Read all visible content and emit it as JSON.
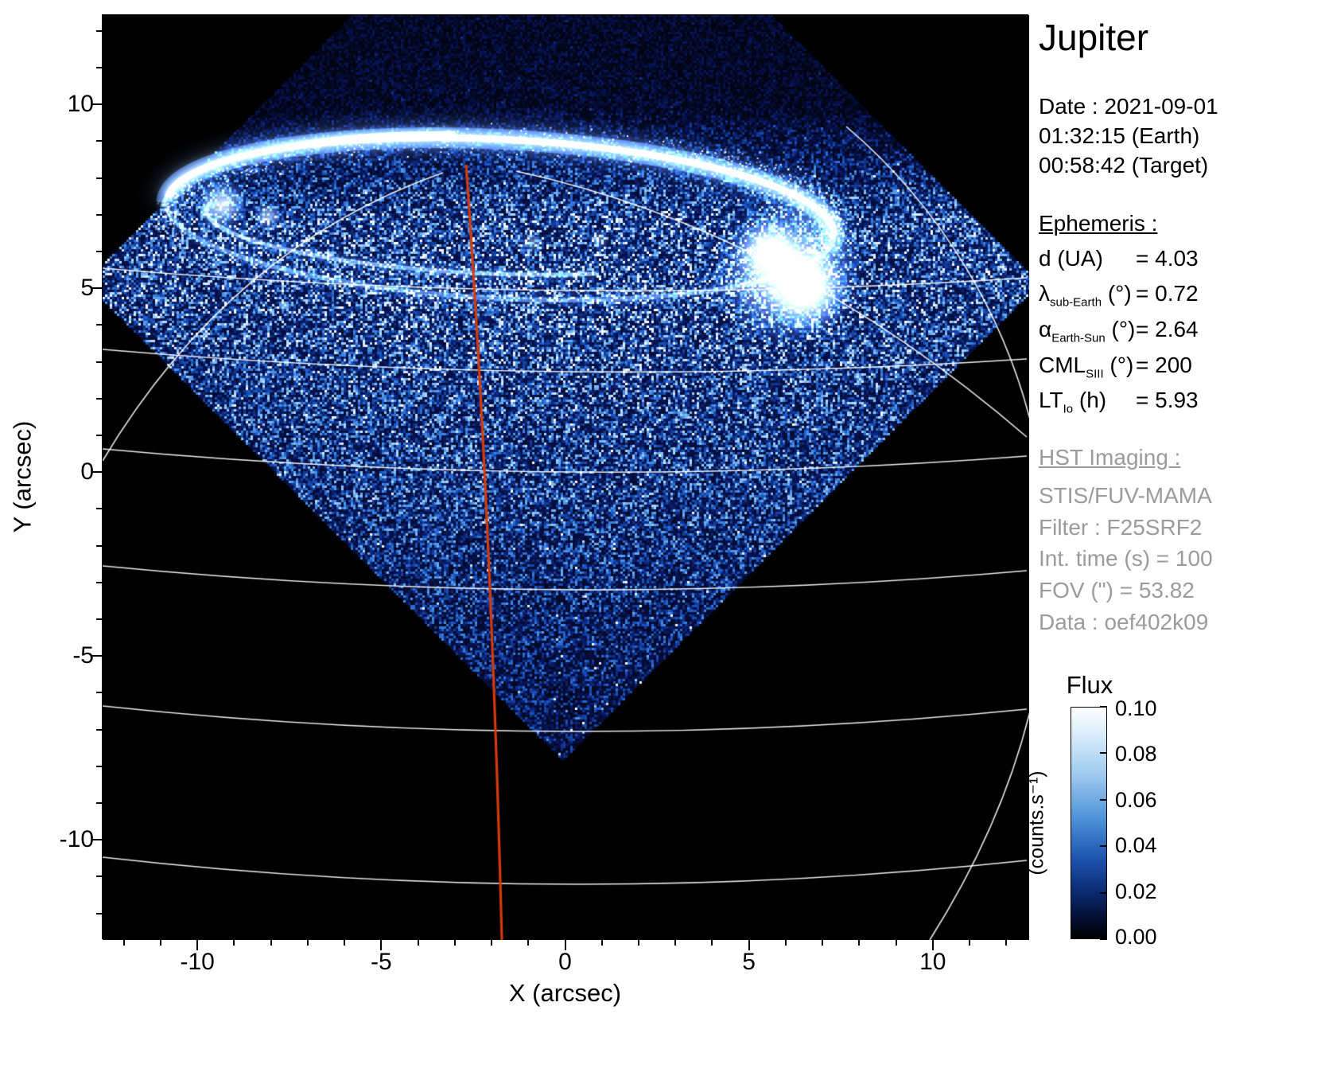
{
  "header": {
    "title": "Jupiter"
  },
  "observation": {
    "date_lines": [
      "Date : 2021-09-01",
      "01:32:15 (Earth)",
      "00:58:42 (Target)"
    ]
  },
  "ephemeris": {
    "heading": "Ephemeris :",
    "items": [
      {
        "sym": "d",
        "sub": "",
        "unit": " (UA)",
        "val": "= 4.03"
      },
      {
        "sym": "λ",
        "sub": "sub-Earth",
        "unit": " (°)",
        "val": "= 0.72"
      },
      {
        "sym": "α",
        "sub": "Earth-Sun",
        "unit": " (°)",
        "val": "= 2.64"
      },
      {
        "sym": "CML",
        "sub": "SIII",
        "unit": " (°)",
        "val": "= 200"
      },
      {
        "sym": "LT",
        "sub": "Io",
        "unit": " (h)",
        "val": "= 5.93"
      }
    ]
  },
  "hst": {
    "heading": "HST Imaging :",
    "lines": [
      "STIS/FUV-MAMA",
      "Filter : F25SRF2",
      "Int. time (s) = 100",
      "FOV (\") = 53.82",
      "Data : oef402k09"
    ]
  },
  "chart_data": {
    "type": "heatmap",
    "title": "Jupiter",
    "xlabel": "X (arcsec)",
    "ylabel": "Y (arcsec)",
    "xlim": [
      -12.6,
      12.6
    ],
    "ylim": [
      -12.7,
      12.45
    ],
    "xticks": [
      -10,
      -5,
      0,
      5,
      10
    ],
    "xtick_labels": [
      "-10",
      "-5",
      "0",
      "5",
      "10"
    ],
    "yticks": [
      -10,
      -5,
      0,
      5,
      10
    ],
    "ytick_labels": [
      "-10",
      "-5",
      "0",
      "5",
      "10"
    ],
    "grid": "white planetographic lat/lon graticule over image; red curve marks the central meridian (CML 200)",
    "colorbar": {
      "title": "Flux",
      "units_label": "(counts.s⁻¹)",
      "tick_labels": [
        "0.10",
        "0.08",
        "0.06",
        "0.04",
        "0.02",
        "0.00"
      ],
      "range": [
        0.0,
        0.1
      ]
    },
    "features": {
      "description": "HST FUV image of Jupiter's northern aurora: bright auroral oval arc near top of frame with intense spot on its right limb, diamond-shaped STIS field of view filled with blue speckled dayglow, black sky outside the FOV",
      "auroral_oval_center_arcsec": [
        -1.6,
        7.0
      ],
      "auroral_oval_semi_axes_arcsec": [
        9.0,
        2.1
      ],
      "bright_spot_arcsec": [
        6.0,
        5.5
      ],
      "cml_meridian_color": "#d63a0a",
      "graticule_color": "#ffffff",
      "background": "#000000"
    }
  },
  "colors": {
    "accent_red": "#d63a0a",
    "text_gray": "#9b9b9b",
    "text_black": "#000000"
  }
}
